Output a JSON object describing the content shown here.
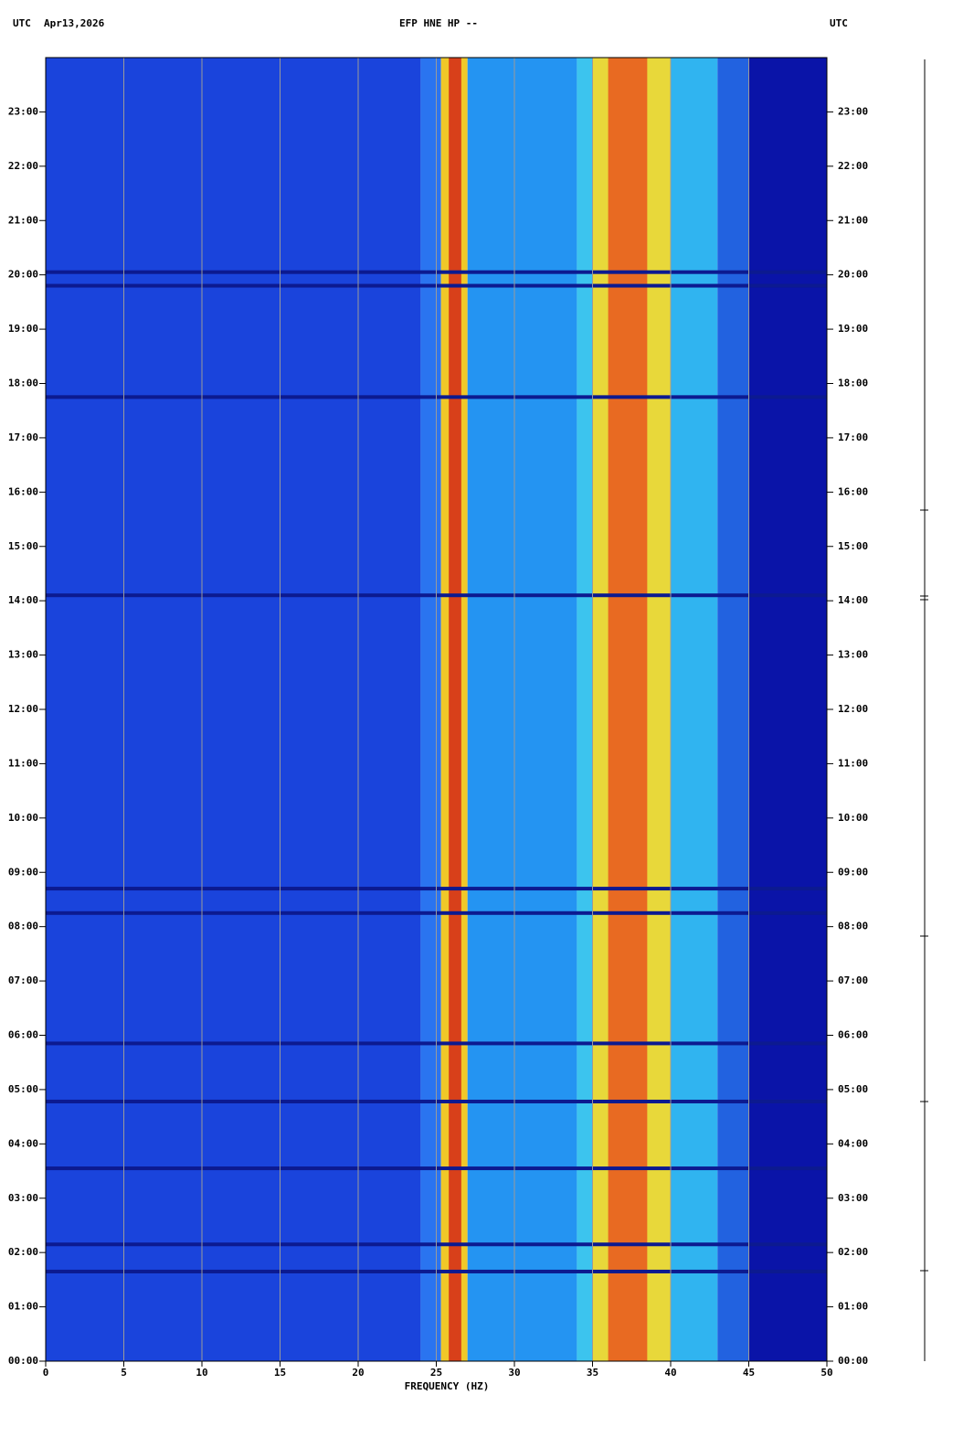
{
  "chart_data": {
    "type": "spectrogram",
    "header_left": "UTC",
    "date": "Apr13,2026",
    "title": "EFP HNE HP --",
    "header_right": "UTC",
    "xlabel": "FREQUENCY (HZ)",
    "xlim": [
      0,
      50
    ],
    "xticks": [
      0,
      5,
      10,
      15,
      20,
      25,
      30,
      35,
      40,
      45,
      50
    ],
    "ylim": [
      0,
      24
    ],
    "yticks": [
      {
        "value": 0,
        "label": "00:00"
      },
      {
        "value": 1,
        "label": "01:00"
      },
      {
        "value": 2,
        "label": "02:00"
      },
      {
        "value": 3,
        "label": "03:00"
      },
      {
        "value": 4,
        "label": "04:00"
      },
      {
        "value": 5,
        "label": "05:00"
      },
      {
        "value": 6,
        "label": "06:00"
      },
      {
        "value": 7,
        "label": "07:00"
      },
      {
        "value": 8,
        "label": "08:00"
      },
      {
        "value": 9,
        "label": "09:00"
      },
      {
        "value": 10,
        "label": "10:00"
      },
      {
        "value": 11,
        "label": "11:00"
      },
      {
        "value": 12,
        "label": "12:00"
      },
      {
        "value": 13,
        "label": "13:00"
      },
      {
        "value": 14,
        "label": "14:00"
      },
      {
        "value": 15,
        "label": "15:00"
      },
      {
        "value": 16,
        "label": "16:00"
      },
      {
        "value": 17,
        "label": "17:00"
      },
      {
        "value": 18,
        "label": "18:00"
      },
      {
        "value": 19,
        "label": "19:00"
      },
      {
        "value": 20,
        "label": "20:00"
      },
      {
        "value": 21,
        "label": "21:00"
      },
      {
        "value": 22,
        "label": "22:00"
      },
      {
        "value": 23,
        "label": "23:00"
      }
    ],
    "grid": true,
    "bands": [
      {
        "from": 0,
        "to": 24,
        "color": "#1a44dc"
      },
      {
        "from": 24,
        "to": 25.3,
        "color": "#2a74f0"
      },
      {
        "from": 25.3,
        "to": 27,
        "color": "#f0c828"
      },
      {
        "from": 25.8,
        "to": 26.6,
        "color": "#d8401a"
      },
      {
        "from": 27,
        "to": 34,
        "color": "#2494f2"
      },
      {
        "from": 34,
        "to": 35,
        "color": "#3cc4ee"
      },
      {
        "from": 35,
        "to": 40,
        "color": "#e8d83a"
      },
      {
        "from": 36,
        "to": 38.5,
        "color": "#e86a22"
      },
      {
        "from": 40,
        "to": 43,
        "color": "#30b4f0"
      },
      {
        "from": 43,
        "to": 45,
        "color": "#2262e0"
      },
      {
        "from": 45,
        "to": 50,
        "color": "#0a14a8"
      }
    ],
    "stripes": [
      {
        "time": 1.65,
        "color": "#0c1a90"
      },
      {
        "time": 2.15,
        "color": "#0c1a90"
      },
      {
        "time": 3.55,
        "color": "#0c1a90"
      },
      {
        "time": 4.78,
        "color": "#0c1a90"
      },
      {
        "time": 5.85,
        "color": "#0c1a90"
      },
      {
        "time": 8.25,
        "color": "#0c1a90"
      },
      {
        "time": 8.7,
        "color": "#0c1a90"
      },
      {
        "time": 14.1,
        "color": "#0c1a90"
      },
      {
        "time": 17.75,
        "color": "#0c1a90"
      },
      {
        "time": 19.8,
        "color": "#0c1a90"
      },
      {
        "time": 20.05,
        "color": "#0c1a90"
      }
    ]
  }
}
